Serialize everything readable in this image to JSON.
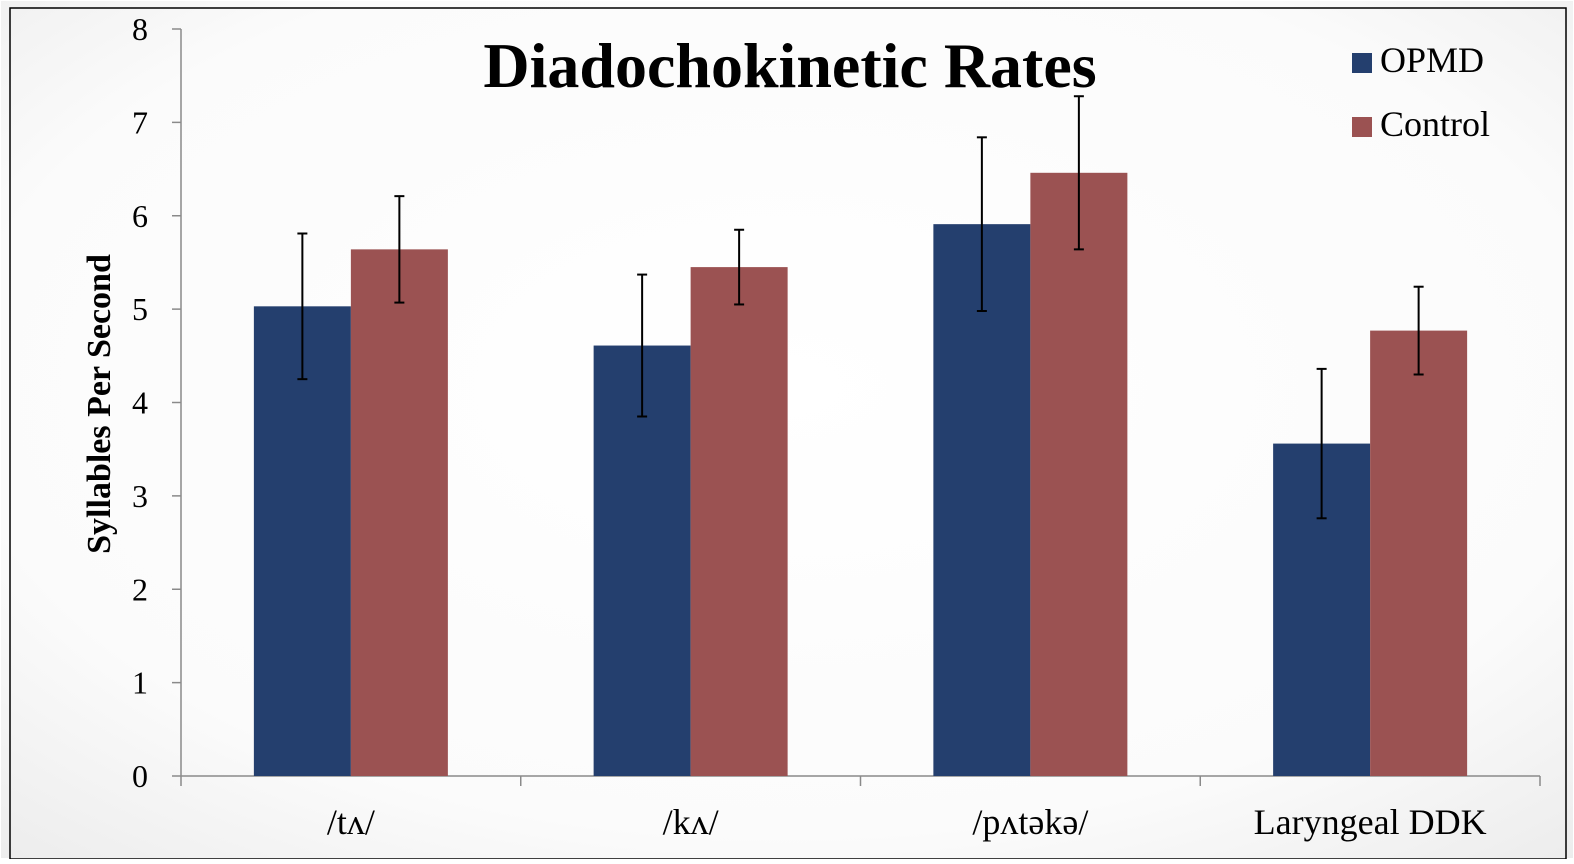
{
  "chart_data": {
    "type": "bar",
    "title": "Diadochokinetic Rates",
    "xlabel": "",
    "ylabel": "Syllables Per Second",
    "ylim": [
      0,
      8
    ],
    "yticks": [
      0,
      1,
      2,
      3,
      4,
      5,
      6,
      7,
      8
    ],
    "grid": false,
    "legend_position": "top-right",
    "categories": [
      "/tʌ/",
      "/kʌ/",
      "/pʌtəkə/",
      "Laryngeal DDK"
    ],
    "series": [
      {
        "name": "OPMD",
        "color": "#243f6e",
        "values": [
          5.03,
          4.61,
          5.91,
          3.56
        ],
        "error": [
          0.78,
          0.76,
          0.93,
          0.8
        ]
      },
      {
        "name": "Control",
        "color": "#9b5252",
        "values": [
          5.64,
          5.45,
          6.46,
          4.77
        ],
        "error": [
          0.57,
          0.4,
          0.82,
          0.47
        ]
      }
    ]
  }
}
